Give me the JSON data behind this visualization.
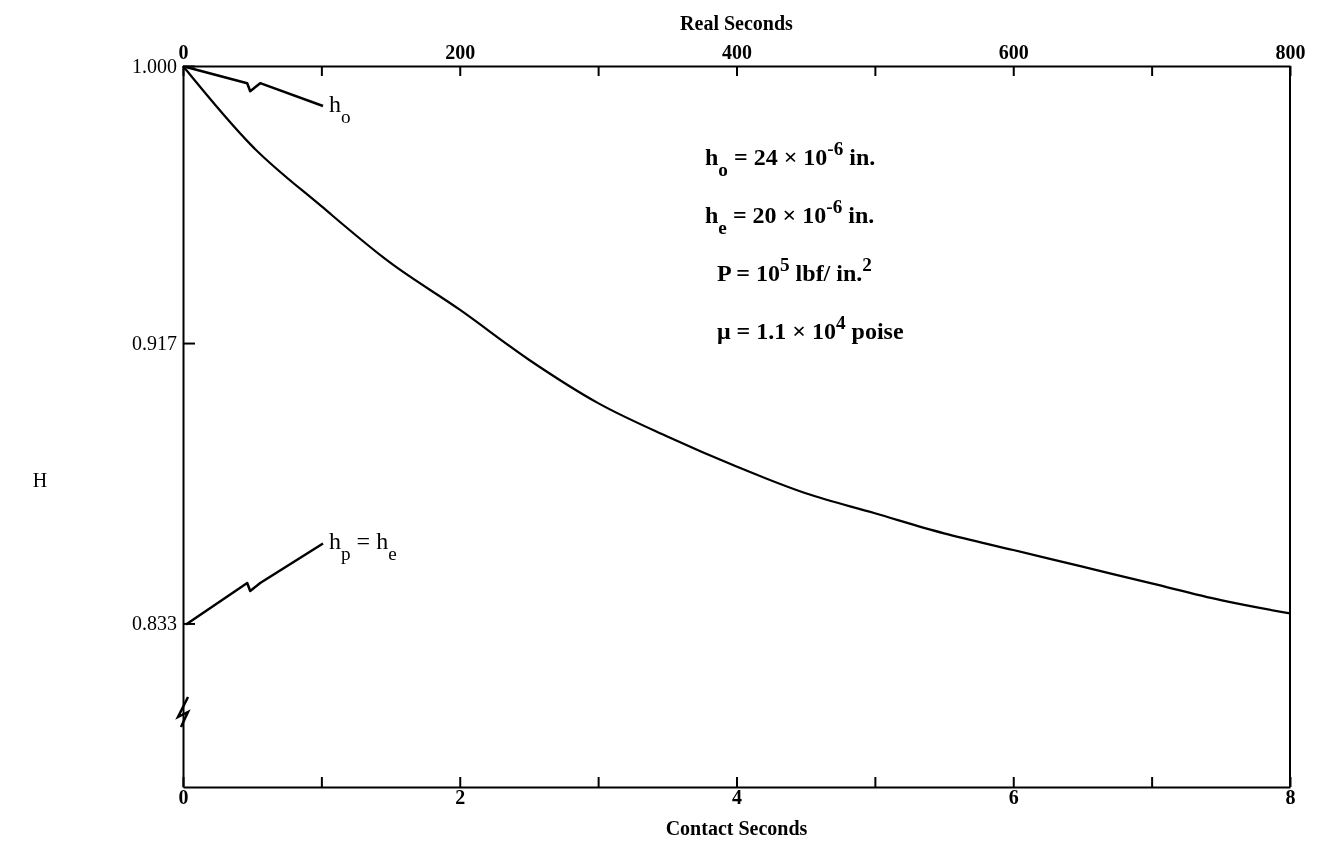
{
  "chart_data": {
    "type": "line",
    "xlabel": "Contact Seconds",
    "x2label": "Real Seconds",
    "ylabel": "H",
    "x": [
      0,
      0.5,
      1,
      1.5,
      2,
      2.5,
      3,
      3.5,
      4,
      4.5,
      5,
      5.5,
      6,
      6.5,
      7,
      7.5,
      8
    ],
    "series": [
      {
        "color": "#000000",
        "values": [
          1.0,
          0.976,
          0.958,
          0.941,
          0.927,
          0.912,
          0.899,
          0.889,
          0.88,
          0.872,
          0.866,
          0.86,
          0.855,
          0.85,
          0.845,
          0.84,
          0.836
        ]
      }
    ],
    "xlim": [
      0,
      8
    ],
    "xticks": [
      0,
      {
        "value": 1,
        "label": null
      },
      2,
      {
        "value": 3,
        "label": null
      },
      4,
      {
        "value": 5,
        "label": null
      },
      6,
      {
        "value": 7,
        "label": null
      },
      8
    ],
    "x2lim": [
      0,
      800
    ],
    "x2ticks": [
      0,
      {
        "value": 100,
        "label": null
      },
      200,
      {
        "value": 300,
        "label": null
      },
      400,
      {
        "value": 500,
        "label": null
      },
      600,
      {
        "value": 700,
        "label": null
      },
      800
    ],
    "ylim": [
      0.784,
      1.0
    ],
    "yticks": [
      {
        "value": 1.0,
        "label": "1.000"
      },
      0.917,
      0.833
    ],
    "marker": "none",
    "line_style": "solid",
    "grid": false,
    "annotations": [
      {
        "text": "h$_{o}$",
        "x": 0,
        "y": 1.0
      },
      "h$_{p}$ = h$_{e}$",
      "h$_{o}$ = 24 × 10$^{-6}$ in.",
      "h$_{e}$ = 20 × 10$^{-6}$ in.",
      "P = 10$^{5}$ lbf/ in.$^{2}$",
      "μ = 1.1 × 10$^{4}$ poise"
    ]
  }
}
